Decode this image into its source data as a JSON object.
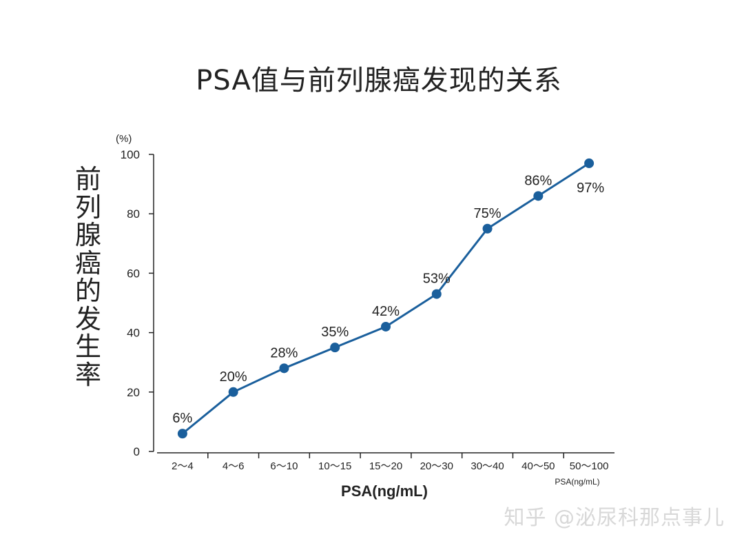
{
  "chart_data": {
    "type": "line",
    "title": "PSA值与前列腺癌发现的关系",
    "ylabel": "前列腺癌的发生率",
    "yunit": "(%)",
    "xlabel": "PSA(ng/mL)",
    "xunit": "PSA(ng/mL)",
    "categories": [
      "2～4",
      "4～6",
      "6～10",
      "10～15",
      "15～20",
      "20～30",
      "30～40",
      "40～50",
      "50～100"
    ],
    "values": [
      6,
      20,
      28,
      35,
      42,
      53,
      75,
      86,
      97
    ],
    "value_labels": [
      "6%",
      "20%",
      "28%",
      "35%",
      "42%",
      "53%",
      "75%",
      "86%",
      "97%"
    ],
    "yticks": [
      "0",
      "20",
      "40",
      "60",
      "80",
      "100"
    ],
    "ylim": [
      0,
      100
    ],
    "line_color": "#1a5f9c",
    "grid": false,
    "legend": "none"
  },
  "watermark": "知乎 @泌尿科那点事儿"
}
